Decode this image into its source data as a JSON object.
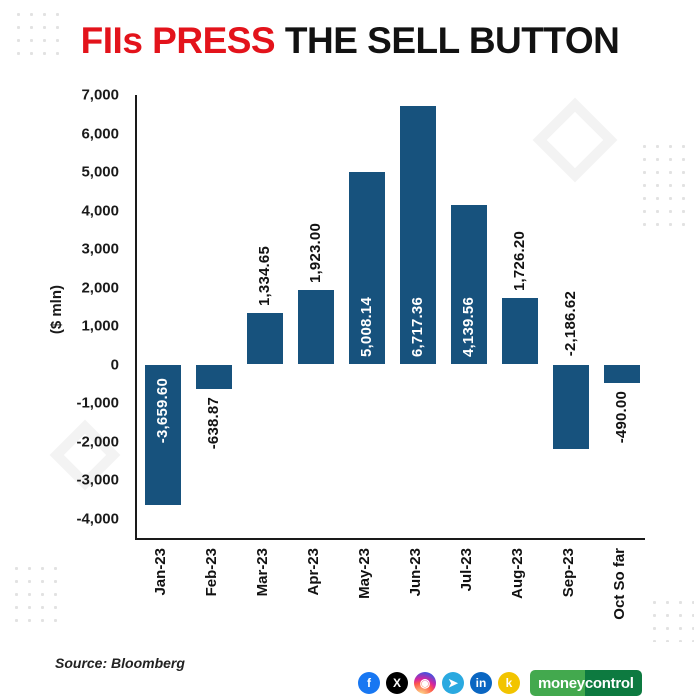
{
  "header": {
    "title_red": "FIIs PRESS",
    "title_black": " THE SELL BUTTON"
  },
  "chart_data": {
    "type": "bar",
    "title": "FIIs PRESS THE SELL BUTTON",
    "ylabel": "($ mln)",
    "ylim": [
      -4000,
      7000
    ],
    "grid": false,
    "legend": false,
    "bar_color": "#17527d",
    "categories": [
      "Jan-23",
      "Feb-23",
      "Mar-23",
      "Apr-23",
      "May-23",
      "Jun-23",
      "Jul-23",
      "Aug-23",
      "Sep-23",
      "Oct So far"
    ],
    "values": [
      -3659.6,
      -638.87,
      1334.65,
      1923.0,
      5008.14,
      6717.36,
      4139.56,
      1726.2,
      -2186.62,
      -490.0
    ],
    "value_labels": [
      "-3,659.60",
      "-638.87",
      "1,334.65",
      "1,923.00",
      "5,008.14",
      "6,717.36",
      "4,139.56",
      "1,726.20",
      "-2,186.62",
      "-490.00"
    ],
    "label_placement": [
      "inside",
      "outside",
      "outside",
      "outside",
      "inside",
      "inside",
      "inside",
      "outside",
      "above-baseline",
      "outside"
    ],
    "ytick_values": [
      7000,
      6000,
      5000,
      4000,
      3000,
      2000,
      1000,
      0,
      -1000,
      -2000,
      -3000,
      -4000
    ],
    "ytick_labels": [
      "7,000",
      "6,000",
      "5,000",
      "4,000",
      "3,000",
      "2,000",
      "1,000",
      "0",
      "-1,000",
      "-2,000",
      "-3,000",
      "-4,000"
    ]
  },
  "footer": {
    "source": "Source: Bloomberg",
    "social_icons": [
      {
        "name": "facebook",
        "glyph": "f",
        "color": "#1877f2"
      },
      {
        "name": "x-twitter",
        "glyph": "X",
        "color": "#000000"
      },
      {
        "name": "instagram",
        "glyph": "◉",
        "color": "#d6249f"
      },
      {
        "name": "telegram",
        "glyph": "➤",
        "color": "#2aa9e0"
      },
      {
        "name": "linkedin",
        "glyph": "in",
        "color": "#0a66c2"
      },
      {
        "name": "koo",
        "glyph": "k",
        "color": "#f2c400"
      }
    ],
    "brand": {
      "name_left": "money",
      "name_right": "control",
      "color_left": "#43a94e",
      "color_right": "#0d7a40"
    }
  }
}
